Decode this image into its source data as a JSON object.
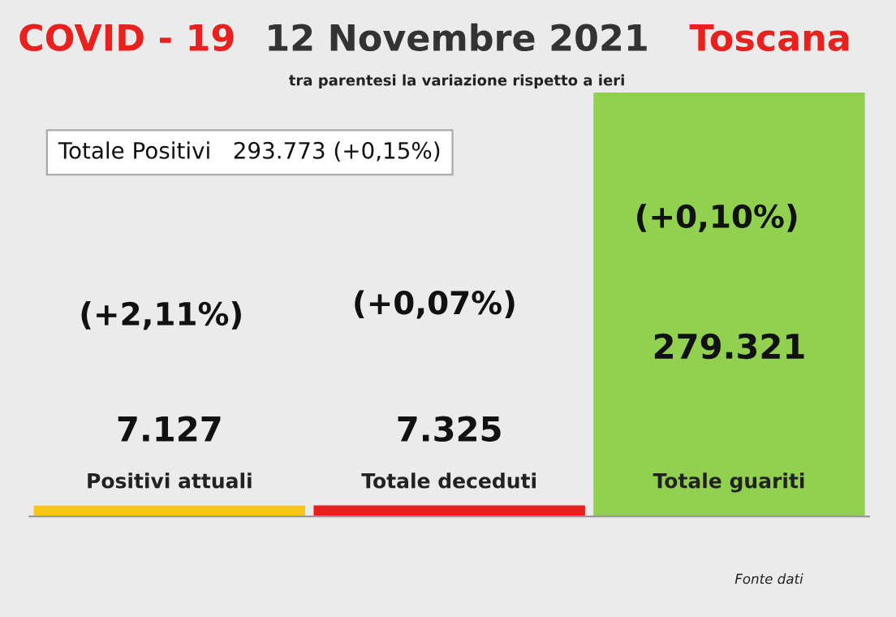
{
  "chart_data": {
    "type": "bar",
    "title": "COVID - 19",
    "subtitle": "tra parentesi la variazione rispetto a ieri",
    "categories": [
      "Positivi attuali",
      "Totale deceduti",
      "Totale guariti"
    ],
    "values": [
      7127,
      7325,
      279321
    ],
    "colors": [
      "#f5c518",
      "#e8201e",
      "#92d050"
    ],
    "value_labels": [
      "7.127",
      "7.325",
      "279.321"
    ],
    "annotations": [
      "12 Novembre 2021",
      "Toscana",
      "Totale Positivi   293.773 (+0,15%)",
      "(+2,11%)",
      "(+0,07%)",
      "(+0,10%)",
      "Fonte dati"
    ],
    "legend": false
  }
}
